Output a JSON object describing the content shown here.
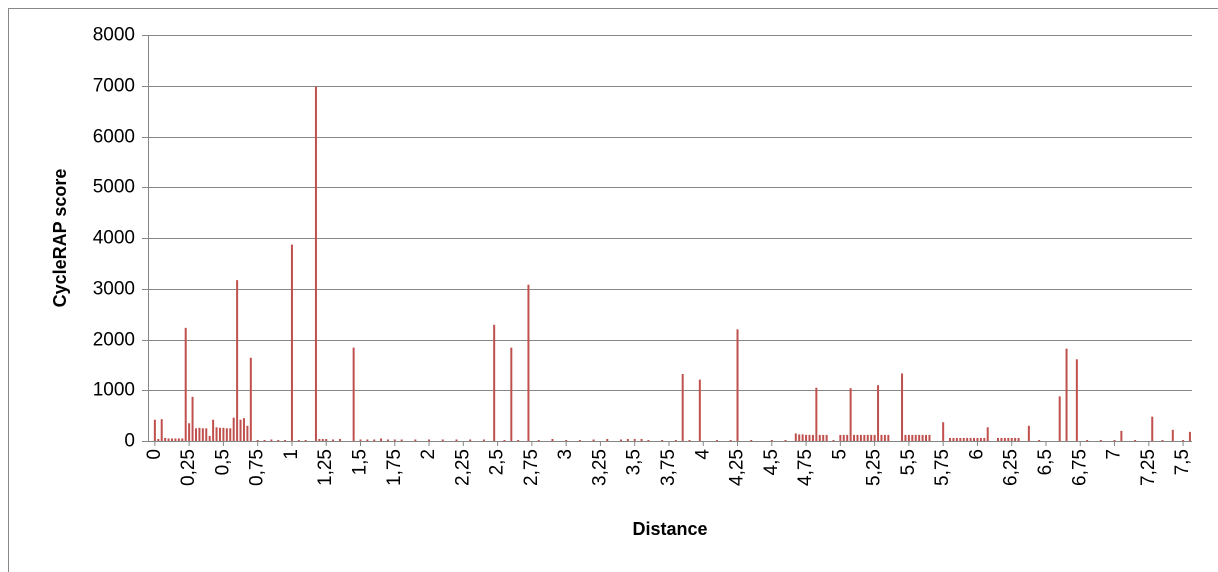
{
  "chart_data": {
    "type": "bar",
    "x_label": "Distance",
    "y_label": "CycleRAP score",
    "color": "#c0504d",
    "grid": true,
    "xlim": [
      -0.05,
      7.565
    ],
    "ylim": [
      0,
      8000
    ],
    "yticks": [
      0,
      1000,
      2000,
      3000,
      4000,
      5000,
      6000,
      7000,
      8000
    ],
    "xticks": [
      0,
      {
        "value": 0.25,
        "label": "0,25"
      },
      {
        "value": 0.5,
        "label": "0,5"
      },
      {
        "value": 0.75,
        "label": "0,75"
      },
      1,
      {
        "value": 1.25,
        "label": "1,25"
      },
      {
        "value": 1.5,
        "label": "1,5"
      },
      {
        "value": 1.75,
        "label": "1,75"
      },
      2,
      {
        "value": 2.25,
        "label": "2,25"
      },
      {
        "value": 2.5,
        "label": "2,5"
      },
      {
        "value": 2.75,
        "label": "2,75"
      },
      3,
      {
        "value": 3.25,
        "label": "3,25"
      },
      {
        "value": 3.5,
        "label": "3,5"
      },
      {
        "value": 3.75,
        "label": "3,75"
      },
      4,
      {
        "value": 4.25,
        "label": "4,25"
      },
      {
        "value": 4.5,
        "label": "4,5"
      },
      {
        "value": 4.75,
        "label": "4,75"
      },
      5,
      {
        "value": 5.25,
        "label": "5,25"
      },
      {
        "value": 5.5,
        "label": "5,5"
      },
      {
        "value": 5.75,
        "label": "5,75"
      },
      6,
      {
        "value": 6.25,
        "label": "6,25"
      },
      {
        "value": 6.5,
        "label": "6,5"
      },
      {
        "value": 6.75,
        "label": "6,75"
      },
      7,
      {
        "value": 7.25,
        "label": "7,25"
      },
      {
        "value": 7.5,
        "label": "7,5"
      }
    ],
    "x": [
      0,
      0.025,
      0.05,
      0.075,
      0.1,
      0.125,
      0.15,
      0.175,
      0.2,
      0.225,
      0.25,
      0.275,
      0.3,
      0.325,
      0.35,
      0.375,
      0.4,
      0.425,
      0.45,
      0.475,
      0.5,
      0.525,
      0.55,
      0.575,
      0.6,
      0.625,
      0.65,
      0.675,
      0.7,
      0.75,
      0.8,
      0.85,
      0.9,
      0.95,
      1,
      1.05,
      1.1,
      1.175,
      1.2,
      1.225,
      1.25,
      1.3,
      1.35,
      1.45,
      1.5,
      1.55,
      1.6,
      1.65,
      1.7,
      1.75,
      1.8,
      1.9,
      2,
      2.1,
      2.2,
      2.3,
      2.4,
      2.475,
      2.55,
      2.6,
      2.65,
      2.725,
      2.8,
      2.9,
      3,
      3.1,
      3.2,
      3.3,
      3.4,
      3.45,
      3.5,
      3.55,
      3.6,
      3.7,
      3.8,
      3.85,
      3.9,
      3.975,
      4.1,
      4.2,
      4.25,
      4.35,
      4.5,
      4.6,
      4.675,
      4.7,
      4.725,
      4.75,
      4.775,
      4.8,
      4.825,
      4.85,
      4.875,
      4.9,
      4.95,
      5,
      5.025,
      5.05,
      5.075,
      5.1,
      5.125,
      5.15,
      5.175,
      5.2,
      5.225,
      5.25,
      5.275,
      5.3,
      5.325,
      5.35,
      5.45,
      5.475,
      5.5,
      5.525,
      5.55,
      5.575,
      5.6,
      5.625,
      5.65,
      5.75,
      5.8,
      5.825,
      5.85,
      5.875,
      5.9,
      5.925,
      5.95,
      5.975,
      6,
      6.025,
      6.05,
      6.075,
      6.15,
      6.175,
      6.2,
      6.225,
      6.25,
      6.275,
      6.3,
      6.375,
      6.45,
      6.6,
      6.65,
      6.725,
      6.8,
      6.9,
      7,
      7.05,
      7.15,
      7.275,
      7.35,
      7.425,
      7.5,
      7.55
    ],
    "values": [
      420,
      40,
      430,
      60,
      50,
      50,
      50,
      50,
      50,
      2230,
      350,
      870,
      250,
      260,
      250,
      250,
      100,
      420,
      270,
      260,
      260,
      250,
      250,
      460,
      3170,
      420,
      450,
      300,
      1640,
      20,
      20,
      30,
      20,
      20,
      3870,
      20,
      20,
      6980,
      40,
      40,
      40,
      30,
      40,
      1840,
      30,
      30,
      30,
      50,
      30,
      30,
      30,
      30,
      30,
      30,
      30,
      30,
      30,
      2290,
      20,
      1840,
      20,
      3080,
      20,
      40,
      20,
      20,
      30,
      40,
      30,
      40,
      40,
      40,
      20,
      20,
      20,
      1320,
      20,
      1210,
      20,
      20,
      2200,
      20,
      20,
      20,
      150,
      130,
      130,
      120,
      120,
      120,
      1050,
      120,
      120,
      120,
      20,
      120,
      120,
      120,
      1040,
      120,
      120,
      120,
      120,
      120,
      120,
      120,
      1100,
      120,
      120,
      120,
      1330,
      120,
      120,
      120,
      120,
      120,
      120,
      120,
      120,
      370,
      60,
      60,
      60,
      60,
      60,
      60,
      60,
      60,
      60,
      60,
      60,
      270,
      60,
      60,
      60,
      60,
      60,
      60,
      60,
      300,
      20,
      880,
      1820,
      1610,
      20,
      20,
      20,
      200,
      20,
      480,
      20,
      220,
      20,
      180
    ]
  }
}
